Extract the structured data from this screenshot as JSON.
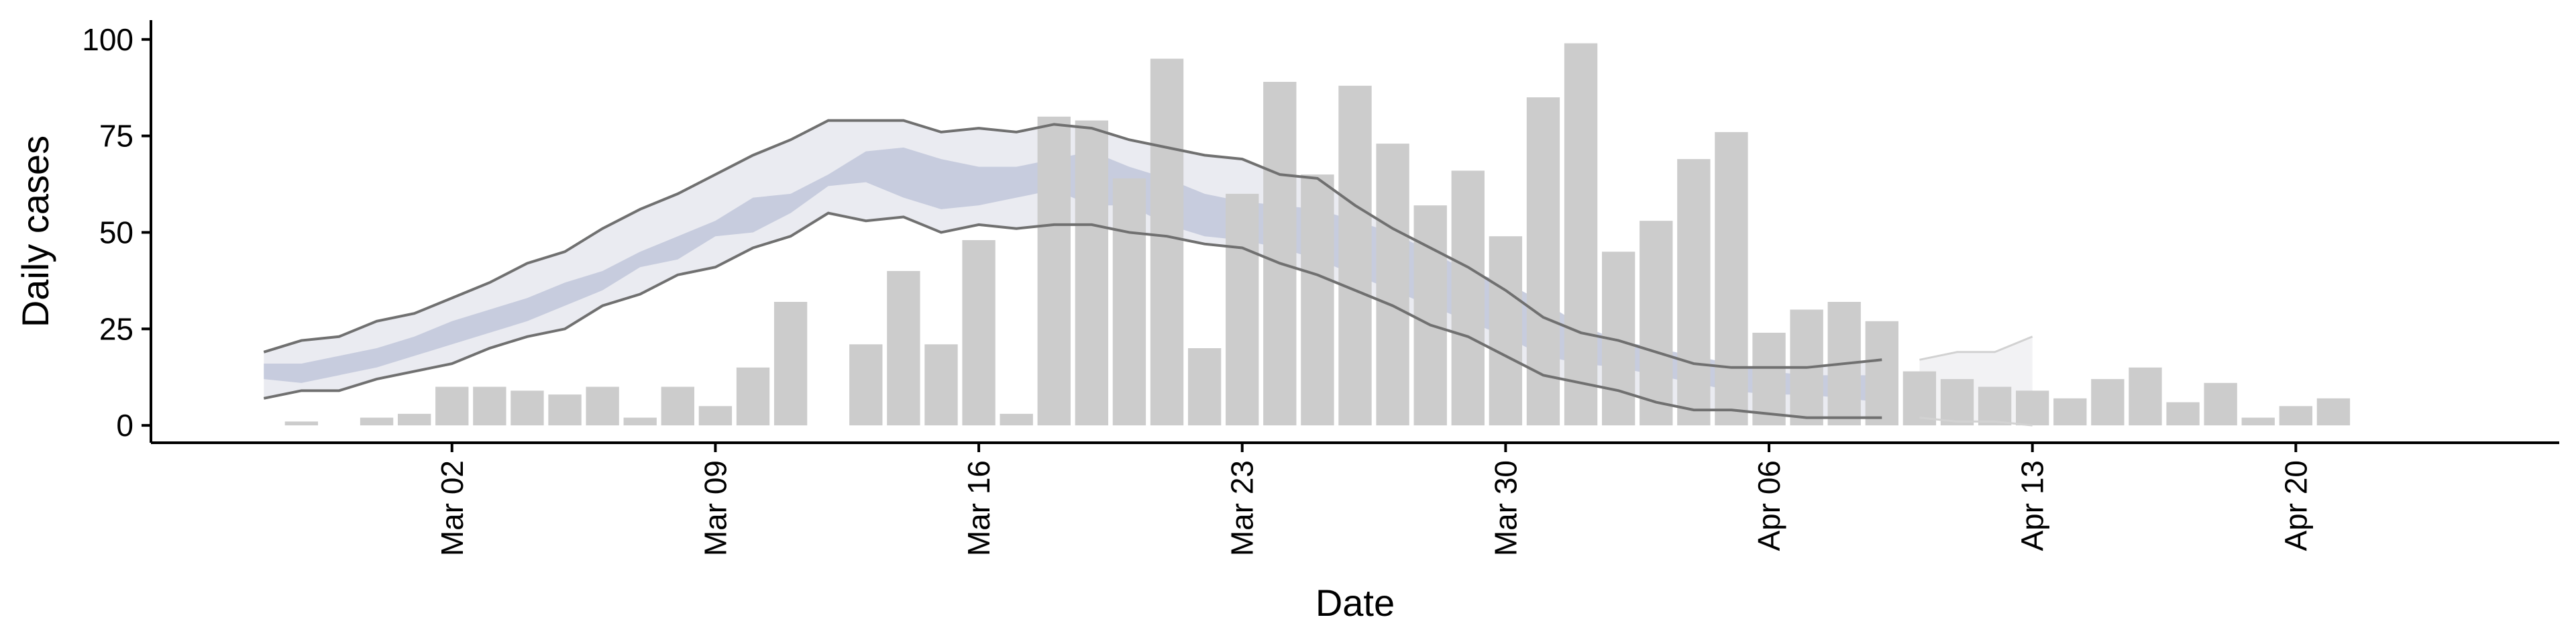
{
  "chart_data": {
    "type": "bar",
    "xlabel": "Date",
    "ylabel": "Daily cases",
    "x_range": [
      "2020-02-23",
      "2020-04-27"
    ],
    "ylim": [
      -4.5,
      105
    ],
    "x_ticks": [
      {
        "date": "2020-03-02",
        "label": "Mar 02"
      },
      {
        "date": "2020-03-09",
        "label": "Mar 09"
      },
      {
        "date": "2020-03-16",
        "label": "Mar 16"
      },
      {
        "date": "2020-03-23",
        "label": "Mar 23"
      },
      {
        "date": "2020-03-30",
        "label": "Mar 30"
      },
      {
        "date": "2020-04-06",
        "label": "Apr 06"
      },
      {
        "date": "2020-04-13",
        "label": "Apr 13"
      },
      {
        "date": "2020-04-20",
        "label": "Apr 20"
      }
    ],
    "y_ticks": [
      0,
      25,
      50,
      75,
      100
    ],
    "x_label_rotation": "vertical",
    "grid": false,
    "legend": "none",
    "bar_start": "2020-02-27",
    "bar_values": [
      1,
      0,
      2,
      3,
      10,
      10,
      9,
      8,
      10,
      2,
      10,
      5,
      15,
      32,
      0,
      21,
      40,
      21,
      48,
      3,
      80,
      79,
      64,
      95,
      20,
      60,
      89,
      65,
      88,
      73,
      57,
      66,
      49,
      85,
      99,
      45,
      53,
      69,
      76,
      24,
      30,
      32,
      27,
      14,
      12,
      10,
      9,
      7,
      12,
      15,
      6,
      11,
      2,
      5,
      7
    ],
    "estimate_start": "2020-02-26",
    "estimate_upper": [
      19,
      22,
      23,
      27,
      29,
      33,
      37,
      42,
      45,
      51,
      56,
      60,
      65,
      70,
      74,
      79,
      79,
      79,
      76,
      77,
      76,
      78,
      77,
      74,
      72,
      70,
      69,
      65,
      64,
      57,
      51,
      46,
      41,
      35,
      28,
      24,
      22,
      19,
      16,
      15,
      15,
      15,
      16,
      17
    ],
    "estimate_upper_iqr": [
      16,
      16,
      18,
      20,
      23,
      27,
      30,
      33,
      37,
      40,
      45,
      49,
      53,
      59,
      60,
      65,
      71,
      72,
      69,
      67,
      67,
      69,
      71,
      67,
      64,
      60,
      58,
      57,
      56,
      53,
      50,
      45,
      40,
      37,
      32,
      26,
      22,
      20,
      18,
      16,
      14,
      13,
      13,
      13
    ],
    "estimate_lower_iqr": [
      12,
      11,
      13,
      15,
      18,
      21,
      24,
      27,
      31,
      35,
      41,
      43,
      49,
      50,
      55,
      62,
      63,
      59,
      56,
      57,
      59,
      61,
      57,
      57,
      52,
      49,
      48,
      46,
      43,
      39,
      35,
      31,
      27,
      23,
      18,
      16,
      15,
      13,
      11,
      9,
      8,
      8,
      7,
      6
    ],
    "estimate_lower": [
      7,
      9,
      9,
      12,
      14,
      16,
      20,
      23,
      25,
      31,
      34,
      39,
      41,
      46,
      49,
      55,
      53,
      54,
      50,
      52,
      51,
      52,
      52,
      50,
      49,
      47,
      46,
      42,
      39,
      35,
      31,
      26,
      23,
      18,
      13,
      11,
      9,
      6,
      4,
      4,
      3,
      2,
      2,
      2
    ],
    "tail_start": "2020-04-10",
    "tail_upper": [
      17,
      19,
      19,
      23
    ],
    "tail_lower": [
      2,
      1,
      1,
      0
    ],
    "colors": {
      "bars": "#cccccc",
      "outer_band": "#eaebf1",
      "inner_band": "#c3c9db",
      "bound_line": "#707070",
      "tail_band": "#f2f2f4",
      "tail_line": "#d2d2d2",
      "axis": "#000000"
    }
  }
}
